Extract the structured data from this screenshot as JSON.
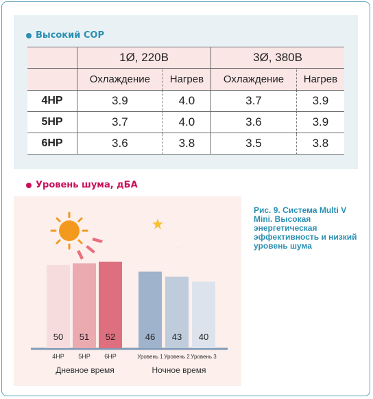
{
  "cop_section": {
    "title": "Высокий COP",
    "bullet_color": "#2a8fb2",
    "group_headers": [
      "1Ø, 220В",
      "3Ø, 380В"
    ],
    "sub_headers": [
      "Охлаждение",
      "Нагрев",
      "Охлаждение",
      "Нагрев"
    ],
    "rows": [
      {
        "label": "4HP",
        "values": [
          "3.9",
          "4.0",
          "3.7",
          "3.9"
        ]
      },
      {
        "label": "5HP",
        "values": [
          "3.7",
          "4.0",
          "3.6",
          "3.9"
        ]
      },
      {
        "label": "6HP",
        "values": [
          "3.6",
          "3.8",
          "3.5",
          "3.8"
        ]
      }
    ]
  },
  "noise_section": {
    "title": "Уровень шума, дБА",
    "bullet_color": "#c8105a",
    "day_label": "Дневное время",
    "night_label": "Ночное время",
    "sun_icon": "sun-icon",
    "moon_icon": "moon-star-icon"
  },
  "caption": "Рис. 9. Система Multi V Mini. Высокая энергетическая эффективность и низкий уровень шума",
  "chart_data": {
    "type": "bar",
    "categories": [
      "4HP",
      "5HP",
      "6HP",
      "Уровень 1",
      "Уровень 2",
      "Уровень 3"
    ],
    "values": [
      50,
      51,
      52,
      46,
      43,
      40
    ],
    "groups": [
      "Дневное время",
      "Дневное время",
      "Дневное время",
      "Ночное время",
      "Ночное время",
      "Ночное время"
    ],
    "colors": [
      "#f6dcdc",
      "#eba9b0",
      "#dd6f7f",
      "#9fb3cc",
      "#bfccdb",
      "#dde3ec"
    ],
    "ylim": [
      0,
      52
    ]
  }
}
